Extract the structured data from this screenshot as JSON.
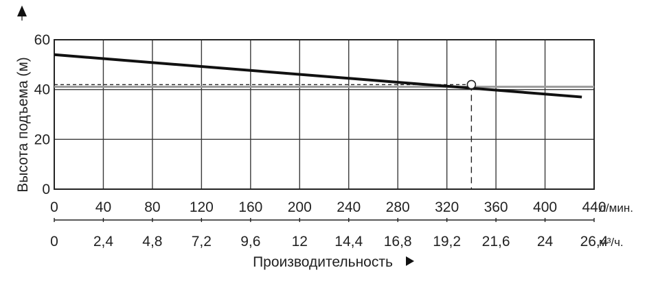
{
  "chart_data": {
    "type": "line",
    "title": "",
    "ylabel": "Высота подъема (м)",
    "xlabel": "Производительность",
    "ylim": [
      0,
      60
    ],
    "y_ticks": [
      "0",
      "20",
      "40",
      "60"
    ],
    "x_primary": {
      "unit": "л/мин.",
      "range": [
        0,
        440
      ],
      "ticks": [
        "0",
        "40",
        "80",
        "120",
        "160",
        "200",
        "240",
        "280",
        "320",
        "360",
        "400",
        "440"
      ]
    },
    "x_secondary": {
      "unit": "м³/ч.",
      "ticks": [
        "0",
        "2,4",
        "4,8",
        "7,2",
        "9,6",
        "12",
        "14,4",
        "16,8",
        "19,2",
        "21,6",
        "24",
        "26,4"
      ]
    },
    "grid": true,
    "series": [
      {
        "x": [
          0,
          430
        ],
        "y": [
          54,
          37
        ]
      }
    ],
    "operating_point": {
      "x": 340,
      "y": 42
    }
  }
}
